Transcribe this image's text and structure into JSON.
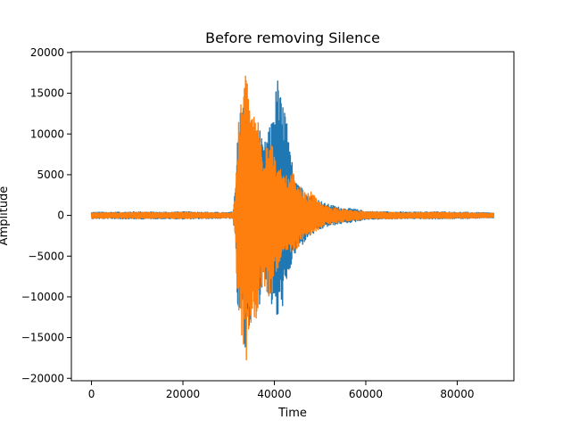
{
  "chart_data": {
    "type": "line",
    "title": "Before removing Silence",
    "xlabel": "Time",
    "ylabel": "Amplitude",
    "xlim": [
      -4400,
      92400
    ],
    "ylim": [
      -20300,
      20100
    ],
    "xticks": [
      0,
      20000,
      40000,
      60000,
      80000
    ],
    "yticks": [
      -20000,
      -15000,
      -10000,
      -5000,
      0,
      5000,
      10000,
      15000,
      20000
    ],
    "grid": false,
    "legend": "none",
    "series": [
      {
        "color": "#1f77b4",
        "envelope": {
          "x": [
            0,
            5000,
            10000,
            15000,
            20000,
            25000,
            30000,
            31000,
            31500,
            32000,
            32800,
            33600,
            34400,
            35200,
            36000,
            36800,
            37600,
            38400,
            39200,
            40000,
            40800,
            41600,
            42400,
            43200,
            44000,
            45000,
            46000,
            47000,
            48000,
            49500,
            51000,
            53000,
            55000,
            57500,
            60000,
            65000,
            70000,
            75000,
            80000,
            85000,
            88000
          ],
          "max": [
            400,
            400,
            450,
            400,
            450,
            400,
            350,
            500,
            3800,
            12000,
            13500,
            14800,
            13500,
            9500,
            10500,
            11000,
            8000,
            10500,
            11000,
            14500,
            17200,
            14000,
            13800,
            8500,
            6500,
            5000,
            3500,
            2800,
            2600,
            2000,
            1500,
            1200,
            900,
            800,
            500,
            450,
            400,
            450,
            400,
            350,
            300
          ],
          "min": [
            -400,
            -400,
            -450,
            -400,
            -450,
            -400,
            -350,
            -500,
            -4000,
            -11500,
            -13000,
            -17500,
            -14500,
            -11500,
            -9000,
            -11000,
            -7500,
            -9500,
            -11000,
            -12000,
            -13500,
            -11500,
            -10500,
            -7500,
            -5500,
            -4500,
            -3800,
            -3000,
            -2500,
            -2000,
            -1500,
            -1200,
            -1000,
            -800,
            -500,
            -450,
            -400,
            -450,
            -400,
            -350,
            -300
          ]
        }
      },
      {
        "color": "#ff7f0e",
        "envelope": {
          "x": [
            0,
            5000,
            10000,
            15000,
            20000,
            25000,
            30000,
            31000,
            31500,
            32000,
            32800,
            33600,
            34400,
            35200,
            36000,
            36800,
            37600,
            38400,
            39200,
            40000,
            40800,
            41600,
            42400,
            43200,
            44000,
            45000,
            46000,
            47000,
            48000,
            49500,
            51000,
            53000,
            55000,
            57500,
            60000,
            65000,
            70000,
            75000,
            80000,
            85000,
            88000
          ],
          "max": [
            350,
            350,
            400,
            350,
            400,
            350,
            300,
            450,
            3000,
            10500,
            14500,
            18200,
            16500,
            12000,
            13500,
            11000,
            8500,
            10500,
            10500,
            7500,
            6000,
            5500,
            5000,
            4500,
            5500,
            3500,
            3500,
            2500,
            3000,
            1800,
            1200,
            1000,
            800,
            600,
            450,
            400,
            350,
            400,
            350,
            300,
            250
          ],
          "min": [
            -350,
            -350,
            -400,
            -350,
            -400,
            -350,
            -300,
            -450,
            -3500,
            -11000,
            -15000,
            -18500,
            -16500,
            -12000,
            -14000,
            -10500,
            -8500,
            -10000,
            -11000,
            -7500,
            -6500,
            -6000,
            -5500,
            -4800,
            -5000,
            -4000,
            -3500,
            -2500,
            -2500,
            -1800,
            -1200,
            -1000,
            -800,
            -600,
            -450,
            -400,
            -350,
            -400,
            -350,
            -300,
            -250
          ]
        }
      }
    ]
  }
}
